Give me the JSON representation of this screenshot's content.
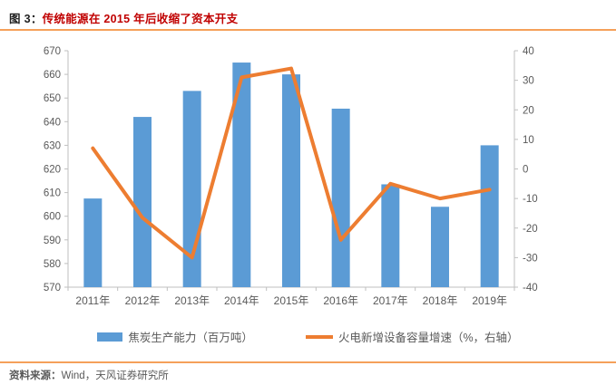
{
  "header": {
    "figure_label": "图 3：",
    "title": "传统能源在 2015 年后收缩了资本开支"
  },
  "footer": {
    "source_label": "资料来源：",
    "source_text": "Wind，天风证券研究所"
  },
  "colors": {
    "bar_blue": "#5b9bd5",
    "line_orange": "#ed7d31",
    "axis_text": "#595959",
    "axis_line": "#bfbfbf",
    "title_red": "#c00000",
    "rule_orange": "#f5a05a"
  },
  "chart_data": {
    "type": "bar",
    "subtype": "combo-bar-line-dual-axis",
    "categories": [
      "2011年",
      "2012年",
      "2013年",
      "2014年",
      "2015年",
      "2016年",
      "2017年",
      "2018年",
      "2019年"
    ],
    "series": [
      {
        "name": "焦炭生产能力（百万吨）",
        "type": "bar",
        "axis": "left",
        "color": "#5b9bd5",
        "values": [
          607.5,
          642,
          653,
          665,
          660,
          645.5,
          613.5,
          604,
          630
        ]
      },
      {
        "name": "火电新增设备容量增速（%，右轴）",
        "type": "line",
        "axis": "right",
        "color": "#ed7d31",
        "values": [
          7,
          -16.5,
          -30,
          31,
          34,
          -24,
          -5,
          -10,
          -7
        ]
      }
    ],
    "left_axis": {
      "min": 570,
      "max": 670,
      "step": 10,
      "ticks": [
        "570",
        "580",
        "590",
        "600",
        "610",
        "620",
        "630",
        "640",
        "650",
        "660",
        "670"
      ]
    },
    "right_axis": {
      "min": -40,
      "max": 40,
      "step": 10,
      "ticks": [
        "-40",
        "-30",
        "-20",
        "-10",
        "0",
        "10",
        "20",
        "30",
        "40"
      ]
    },
    "grid": false,
    "legend_position": "bottom",
    "title": "传统能源在 2015 年后收缩了资本开支"
  }
}
